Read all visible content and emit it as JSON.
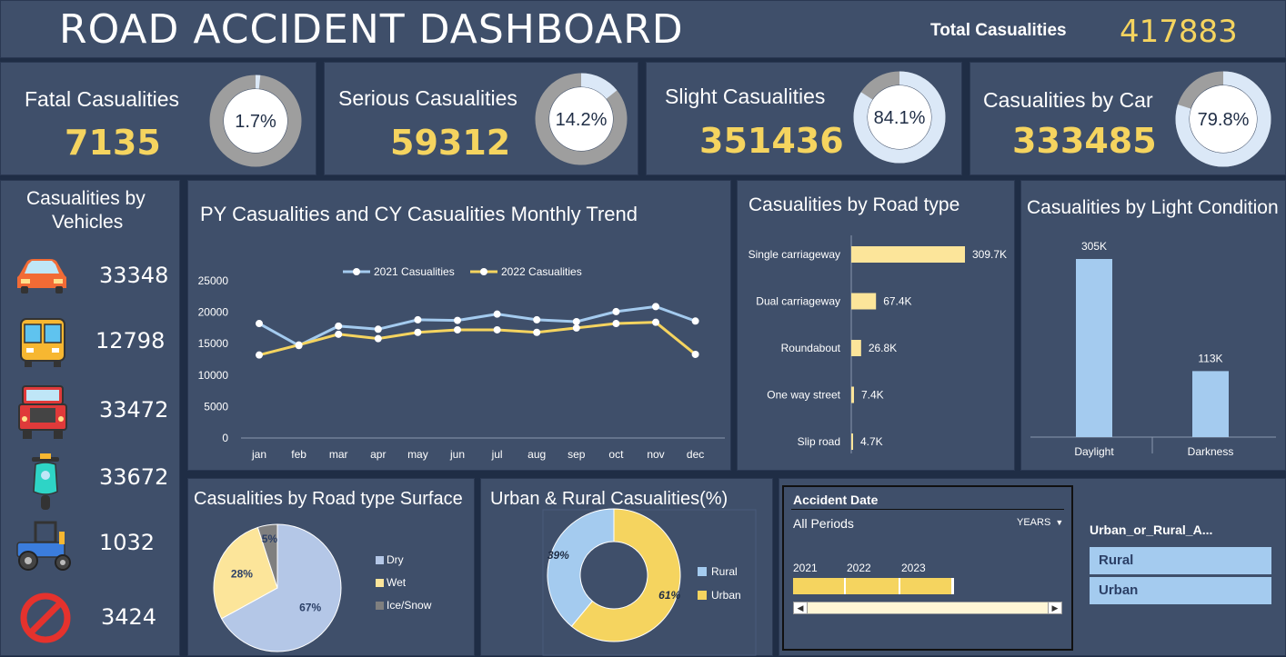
{
  "header": {
    "title": "ROAD ACCIDENT DASHBOARD",
    "total_label": "Total Casualities",
    "total_value": "417883"
  },
  "kpis": [
    {
      "label": "Fatal Casualities",
      "value": "7135",
      "pct_text": "1.7%",
      "pct": 1.7
    },
    {
      "label": "Serious Casualities",
      "value": "59312",
      "pct_text": "14.2%",
      "pct": 14.2
    },
    {
      "label": "Slight Casualities",
      "value": "351436",
      "pct_text": "84.1%",
      "pct": 84.1
    },
    {
      "label": "Casualities by Car",
      "value": "333485",
      "pct_text": "79.8%",
      "pct": 79.8
    }
  ],
  "vehicles": {
    "title_line1": "Casualities by",
    "title_line2": "Vehicles",
    "items": [
      {
        "icon": "car-icon",
        "value": "33348",
        "color": "#f07a35"
      },
      {
        "icon": "bus-icon",
        "value": "12798",
        "color": "#f5c518"
      },
      {
        "icon": "truck-icon",
        "value": "33472",
        "color": "#e51b1b"
      },
      {
        "icon": "scooter-icon",
        "value": "33672",
        "color": "#2fd8e6"
      },
      {
        "icon": "tractor-icon",
        "value": "1032",
        "color": "#2b9bef"
      },
      {
        "icon": "no-entry-icon",
        "value": "3424",
        "color": "#b5e61d"
      }
    ]
  },
  "trend": {
    "title": "PY Casualities and CY Casualities Monthly Trend"
  },
  "roadtype": {
    "title": "Casualities by Road type"
  },
  "light": {
    "title": "Casualities by Light Condition"
  },
  "surface": {
    "title": "Casualities by Road type Surface"
  },
  "urban": {
    "title": "Urban & Rural Casualities(%)"
  },
  "slicer": {
    "title": "Accident Date",
    "period": "All Periods",
    "unit": "YEARS",
    "years": [
      "2021",
      "2022",
      "2023"
    ]
  },
  "filter": {
    "title": "Urban_or_Rural_A...",
    "options": [
      "Rural",
      "Urban"
    ]
  },
  "chart_data": [
    {
      "type": "line",
      "title": "PY Casualities and CY Casualities Monthly Trend",
      "categories": [
        "jan",
        "feb",
        "mar",
        "apr",
        "may",
        "jun",
        "jul",
        "aug",
        "sep",
        "oct",
        "nov",
        "dec"
      ],
      "series": [
        {
          "name": "2021 Casualities",
          "color": "#a4cbef",
          "values": [
            18200,
            14700,
            17800,
            17300,
            18800,
            18700,
            19700,
            18800,
            18500,
            20100,
            20900,
            18600
          ]
        },
        {
          "name": "2022 Casualities",
          "color": "#f5d45f",
          "values": [
            13200,
            14800,
            16500,
            15800,
            16800,
            17200,
            17200,
            16800,
            17500,
            18200,
            18400,
            13300
          ]
        }
      ],
      "yticks": [
        0,
        5000,
        10000,
        15000,
        20000,
        25000
      ],
      "ylim": [
        0,
        25000
      ],
      "legend": "top"
    },
    {
      "type": "bar",
      "orientation": "horizontal",
      "title": "Casualities by Road type",
      "categories": [
        "Single carriageway",
        "Dual carriageway",
        "Roundabout",
        "One way street",
        "Slip road"
      ],
      "values": [
        309.7,
        67.4,
        26.8,
        7.4,
        4.7
      ],
      "labels": [
        "309.7K",
        "67.4K",
        "26.8K",
        "7.4K",
        "4.7K"
      ],
      "color": "#fce59a"
    },
    {
      "type": "bar",
      "title": "Casualities by Light Condition",
      "categories": [
        "Daylight",
        "Darkness"
      ],
      "values": [
        305,
        113
      ],
      "labels": [
        "305K",
        "113K"
      ],
      "color": "#a4cbef"
    },
    {
      "type": "pie",
      "title": "Casualities by Road type Surface",
      "categories": [
        "Dry",
        "Wet",
        "Ice/Snow"
      ],
      "values": [
        67,
        28,
        5
      ],
      "labels": [
        "67%",
        "28%",
        "5%"
      ],
      "colors": [
        "#b4c7e7",
        "#fce59a",
        "#7f7f7f"
      ],
      "legend": "right"
    },
    {
      "type": "pie",
      "donut": true,
      "title": "Urban & Rural Casualities(%)",
      "categories": [
        "Rural",
        "Urban"
      ],
      "values": [
        39,
        61
      ],
      "labels": [
        "39%",
        "61%"
      ],
      "colors": [
        "#a4cbef",
        "#f5d45f"
      ],
      "legend": "right"
    }
  ]
}
